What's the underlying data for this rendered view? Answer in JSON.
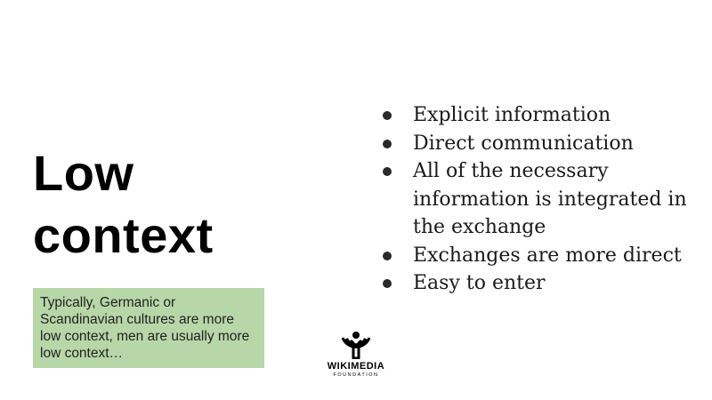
{
  "slide": {
    "title_lines": [
      "Low",
      "context"
    ],
    "note": "Typically, Germanic or Scandinavian cultures are more low context, men are usually more low context…",
    "bullets": [
      "Explicit information",
      "Direct communication",
      "All of the necessary information is integrated in the exchange",
      "Exchanges are more direct",
      "Easy to enter"
    ],
    "logo": {
      "wordmark": "WIKIMEDIA",
      "subtitle": "FOUNDATION"
    },
    "colors": {
      "note_background": "#b7d7a8",
      "text": "#000000"
    }
  }
}
